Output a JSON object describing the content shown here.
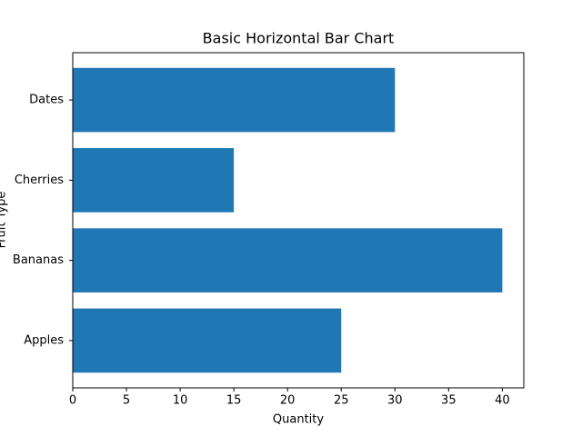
{
  "chart_data": {
    "type": "barh",
    "title": "Basic Horizontal Bar Chart",
    "xlabel": "Quantity",
    "ylabel": "Fruit Type",
    "categories": [
      "Apples",
      "Bananas",
      "Cherries",
      "Dates"
    ],
    "values": [
      25,
      40,
      15,
      30
    ],
    "color": "#1f77b4",
    "xlim": [
      0,
      42
    ],
    "xticks": [
      0,
      5,
      10,
      15,
      20,
      25,
      30,
      35,
      40
    ],
    "grid": false
  }
}
